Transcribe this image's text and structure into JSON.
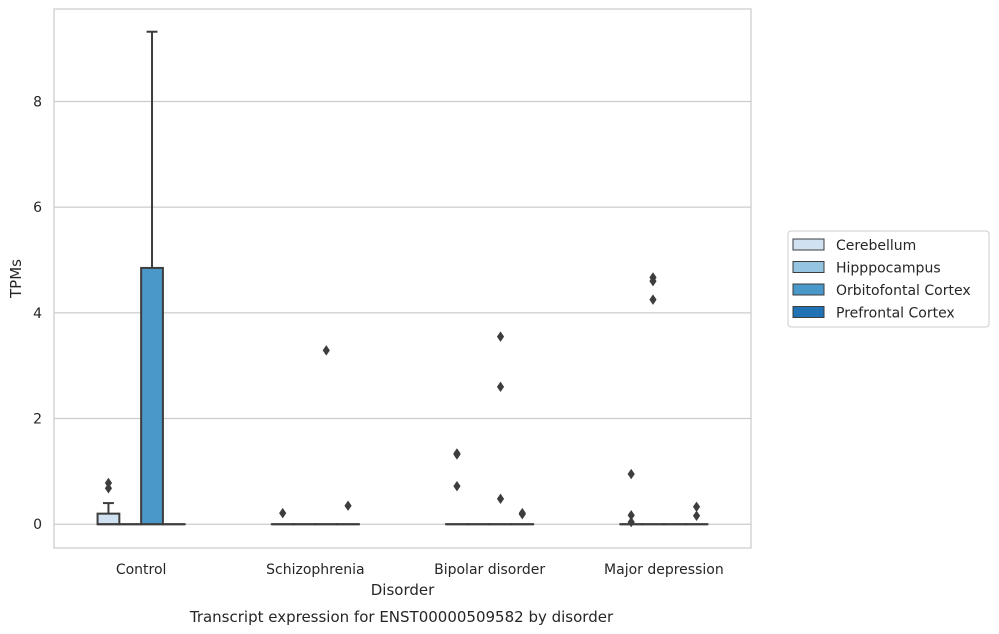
{
  "chart_data": {
    "type": "box",
    "caption": "Transcript expression for ENST00000509582 by disorder",
    "xlabel": "Disorder",
    "ylabel": "TPMs",
    "ylim": [
      -0.45,
      9.75
    ],
    "yticks": [
      0,
      2,
      4,
      6,
      8
    ],
    "grid": "horizontal",
    "legend_position": "right",
    "categories": [
      "Control",
      "Schizophrenia",
      "Bipolar disorder",
      "Major depression"
    ],
    "series": [
      {
        "name": "Cerebellum",
        "color": "#d0e1f2",
        "boxes": [
          {
            "q1": 0,
            "median": 0,
            "q3": 0.2,
            "whisker_low": 0,
            "whisker_high": 0.4,
            "outliers": [
              0.68,
              0.78
            ]
          },
          {
            "q1": 0,
            "median": 0,
            "q3": 0,
            "whisker_low": 0,
            "whisker_high": 0,
            "outliers": [
              0.21
            ]
          },
          {
            "q1": 0,
            "median": 0,
            "q3": 0,
            "whisker_low": 0,
            "whisker_high": 0,
            "outliers": [
              0.72,
              1.32,
              1.34
            ]
          },
          {
            "q1": 0,
            "median": 0,
            "q3": 0,
            "whisker_low": 0,
            "whisker_high": 0,
            "outliers": [
              0.04,
              0.17,
              0.95
            ]
          }
        ]
      },
      {
        "name": "Hipppocampus",
        "color": "#94c4df",
        "boxes": [
          {
            "q1": 0,
            "median": 0,
            "q3": 0,
            "whisker_low": 0,
            "whisker_high": 0,
            "outliers": []
          },
          {
            "q1": 0,
            "median": 0,
            "q3": 0,
            "whisker_low": 0,
            "whisker_high": 0,
            "outliers": []
          },
          {
            "q1": 0,
            "median": 0,
            "q3": 0,
            "whisker_low": 0,
            "whisker_high": 0,
            "outliers": []
          },
          {
            "q1": 0,
            "median": 0,
            "q3": 0,
            "whisker_low": 0,
            "whisker_high": 0,
            "outliers": [
              4.25,
              4.6,
              4.67
            ]
          }
        ]
      },
      {
        "name": "Orbitofontal Cortex",
        "color": "#4a98c9",
        "boxes": [
          {
            "q1": 0,
            "median": 0,
            "q3": 4.85,
            "whisker_low": 0,
            "whisker_high": 9.32,
            "outliers": []
          },
          {
            "q1": 0,
            "median": 0,
            "q3": 0,
            "whisker_low": 0,
            "whisker_high": 0,
            "outliers": [
              3.29
            ]
          },
          {
            "q1": 0,
            "median": 0,
            "q3": 0,
            "whisker_low": 0,
            "whisker_high": 0,
            "outliers": [
              0.48,
              2.6,
              3.55
            ]
          },
          {
            "q1": 0,
            "median": 0,
            "q3": 0,
            "whisker_low": 0,
            "whisker_high": 0,
            "outliers": []
          }
        ]
      },
      {
        "name": "Prefrontal Cortex",
        "color": "#2171b5",
        "boxes": [
          {
            "q1": 0,
            "median": 0,
            "q3": 0,
            "whisker_low": 0,
            "whisker_high": 0,
            "outliers": []
          },
          {
            "q1": 0,
            "median": 0,
            "q3": 0,
            "whisker_low": 0,
            "whisker_high": 0,
            "outliers": [
              0.35
            ]
          },
          {
            "q1": 0,
            "median": 0,
            "q3": 0,
            "whisker_low": 0,
            "whisker_high": 0,
            "outliers": [
              0.19,
              0.21
            ]
          },
          {
            "q1": 0,
            "median": 0,
            "q3": 0,
            "whisker_low": 0,
            "whisker_high": 0,
            "outliers": [
              0.16,
              0.33
            ]
          }
        ]
      }
    ]
  }
}
